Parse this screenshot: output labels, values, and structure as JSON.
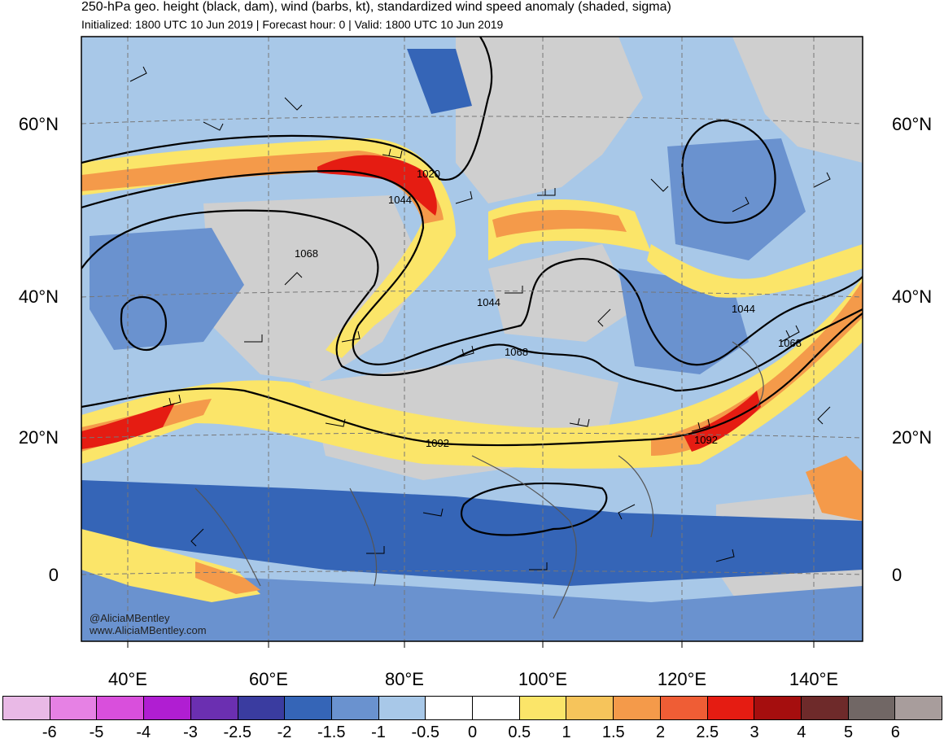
{
  "title": "250-hPa geo. height (black, dam), wind (barbs, kt), standardized wind speed anomaly (shaded, sigma)",
  "subtitle": "Initialized: 1800 UTC 10 Jun 2019 | Forecast hour: 0 | Valid: 1800 UTC 10 Jun 2019",
  "credit": {
    "handle": "@AliciaMBentley",
    "website": "www.AliciaMBentley.com"
  },
  "latitude_labels": [
    "60°N",
    "40°N",
    "20°N",
    "0"
  ],
  "longitude_labels": [
    "40°E",
    "60°E",
    "80°E",
    "100°E",
    "120°E",
    "140°E"
  ],
  "contour_labels": [
    "1020",
    "1044",
    "1068",
    "1044",
    "1068",
    "1092",
    "1044",
    "1068",
    "1092"
  ],
  "colorbar": {
    "tick_labels": [
      "-6",
      "-5",
      "-4",
      "-3",
      "-2.5",
      "-2",
      "-1.5",
      "-1",
      "-0.5",
      "0",
      "0.5",
      "1",
      "1.5",
      "2",
      "2.5",
      "3",
      "4",
      "5",
      "6"
    ],
    "colors": [
      "#e9b9e6",
      "#e681e4",
      "#d94fdc",
      "#b01ed2",
      "#6b2fb1",
      "#3a3ca0",
      "#3565b7",
      "#6a92cf",
      "#a8c8e8",
      "#ffffff",
      "#ffffff",
      "#fbe569",
      "#f6c45b",
      "#f49a4a",
      "#ef5d35",
      "#e51c12",
      "#a50e0e",
      "#6e2a2a",
      "#716765",
      "#a89d9c"
    ]
  },
  "map_colors": {
    "land_gray": "#cfcfcf",
    "neg_light": "#a8c8e8",
    "neg_mid": "#6a92cf",
    "neg_dark": "#3565b7",
    "pos_yellow": "#fbe569",
    "pos_orange": "#f49a4a",
    "pos_red": "#e51c12"
  }
}
